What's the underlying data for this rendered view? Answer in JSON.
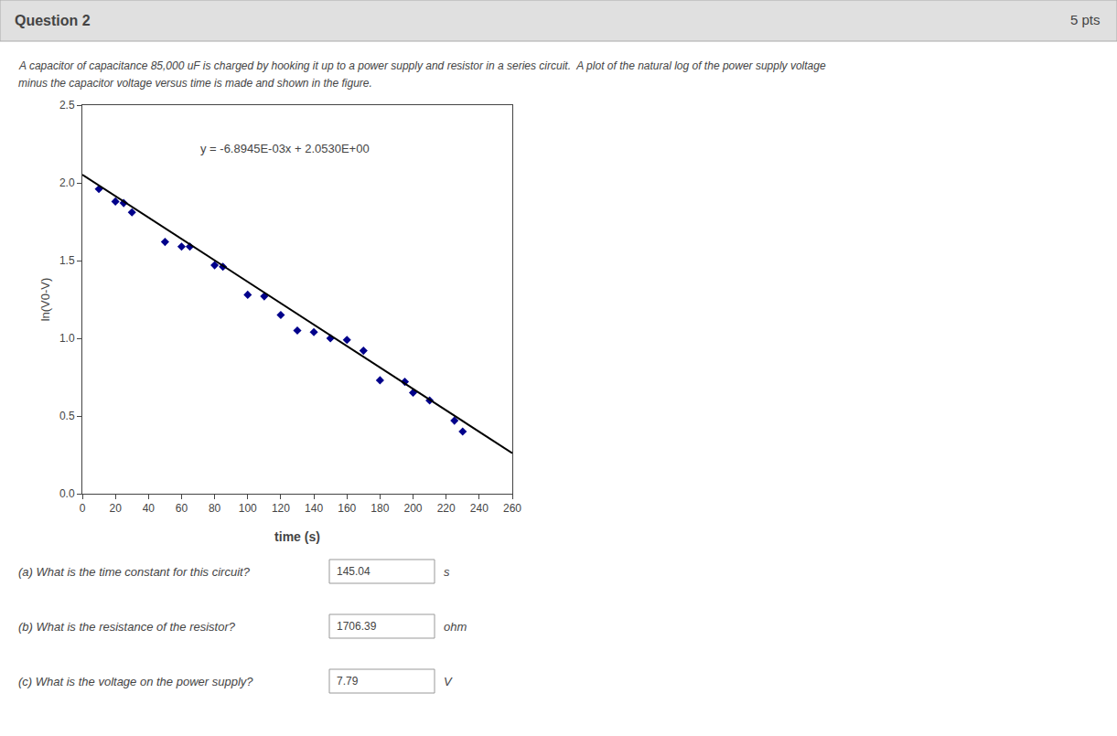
{
  "chart_data": {
    "type": "scatter",
    "title": "Question 2",
    "subtitle": [
      "A capacitor of capacitance 85,000 uF is charged by hooking it up to a power supply and resistor in a series circuit.  A plot of the natural log of the power supply voltage",
      "minus the capacitor voltage versus time is made and shown in the figure."
    ],
    "annotations": [
      "y = -6.8945E-03x + 2.0530E+00",
      "5 pts",
      "(a) What is the time constant for this circuit?",
      "145.04",
      "s",
      "(b) What is the resistance of the resistor?",
      "1706.39",
      "ohm",
      "(c) What is the voltage on the power supply?",
      "7.79",
      "V"
    ],
    "x_label": "time (s)",
    "y_label": "ln(V0-V)",
    "series": [
      {
        "type": "scatter",
        "marker": "diamond",
        "color": "#00008B",
        "x": [
          10,
          20,
          25,
          30,
          50,
          60,
          65,
          80,
          85,
          100,
          110,
          120,
          130,
          140,
          150,
          160,
          170,
          180,
          195,
          200,
          210,
          225,
          230
        ],
        "values": [
          1.96,
          1.88,
          1.87,
          1.81,
          1.62,
          1.59,
          1.59,
          1.47,
          1.46,
          1.28,
          1.27,
          1.15,
          1.05,
          1.04,
          1.0,
          0.99,
          0.92,
          0.73,
          0.72,
          0.65,
          0.6,
          0.47,
          0.4
        ]
      },
      {
        "type": "line",
        "line_style": "solid",
        "color": "#000000",
        "x": [
          0,
          260
        ],
        "values": [
          2.053,
          0.26043
        ]
      }
    ],
    "xlim": [
      0,
      260
    ],
    "xticks": [
      0,
      20,
      40,
      60,
      80,
      100,
      120,
      140,
      160,
      180,
      200,
      220,
      240,
      260
    ],
    "ylim": [
      0,
      2.5
    ],
    "yticks": [
      {
        "value": 0,
        "label": "0.0"
      },
      {
        "value": 0.5,
        "label": "0.5"
      },
      {
        "value": 1,
        "label": "1.0"
      },
      {
        "value": 1.5,
        "label": "1.5"
      },
      {
        "value": 2,
        "label": "2.0"
      },
      {
        "value": 2.5,
        "label": "2.5"
      }
    ],
    "grid": false
  }
}
